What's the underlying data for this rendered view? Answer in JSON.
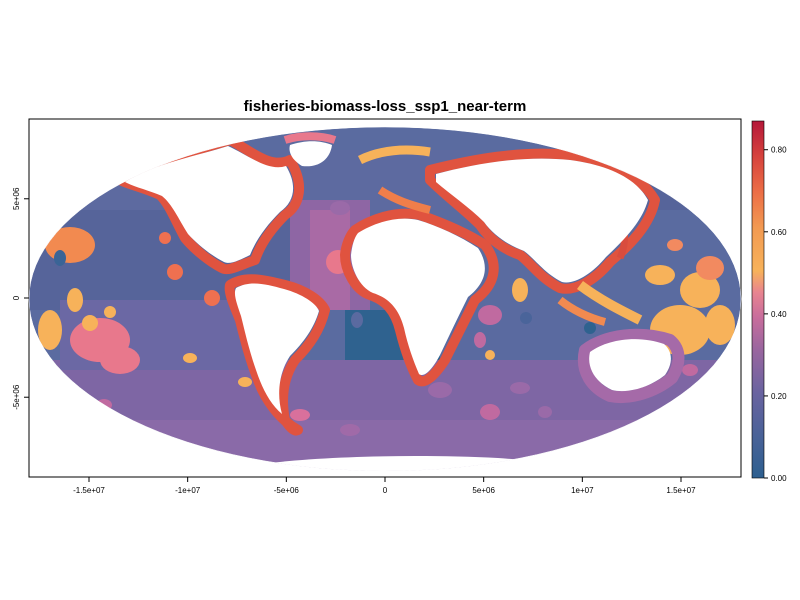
{
  "title": "fisheries-biomass-loss_ssp1_near-term",
  "chart_data": {
    "type": "heatmap",
    "projection": "Mollweide",
    "title": "fisheries-biomass-loss_ssp1_near-term",
    "x_ticks": [
      -15000000,
      -10000000,
      -5000000,
      0,
      5000000,
      10000000,
      15000000
    ],
    "x_tick_labels": [
      "-1.5e+07",
      "-1e+07",
      "-5e+06",
      "0",
      "5e+06",
      "1e+07",
      "1.5e+07"
    ],
    "y_ticks": [
      5000000,
      0,
      -5000000
    ],
    "y_tick_labels": [
      "5e+06",
      "0",
      "-5e+06"
    ],
    "xlim": [
      -18040095,
      18040095
    ],
    "ylim": [
      -9020047,
      9020047
    ],
    "legend": {
      "position": "right",
      "ticks": [
        0.0,
        0.2,
        0.4,
        0.6,
        0.8
      ],
      "tick_labels": [
        "0.00",
        "0.20",
        "0.40",
        "0.60",
        "0.80"
      ],
      "range": [
        0.0,
        0.87
      ],
      "colors": [
        "#2d5f8f",
        "#55649a",
        "#7b64a0",
        "#a9679f",
        "#d9759a",
        "#f18f73",
        "#f7b25a",
        "#f07e4a",
        "#d94c3e",
        "#b5183a"
      ]
    }
  }
}
